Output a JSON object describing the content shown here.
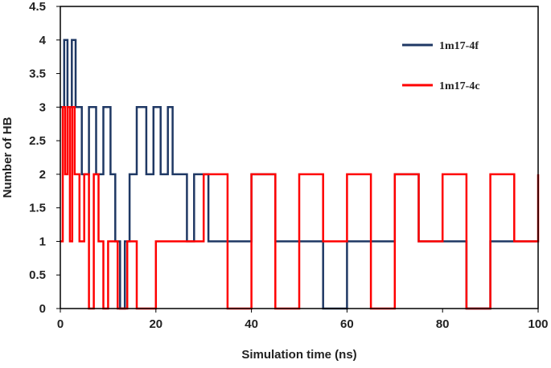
{
  "chart_data": {
    "type": "line",
    "title": "",
    "xlabel": "Simulation time (ns)",
    "ylabel": "Number of HB",
    "xlim": [
      0,
      100
    ],
    "ylim": [
      0,
      4.5
    ],
    "x_ticks": [
      0,
      20,
      40,
      60,
      80,
      100
    ],
    "y_ticks": [
      0,
      0.5,
      1,
      1.5,
      2,
      2.5,
      3,
      3.5,
      4,
      4.5
    ],
    "grid": false,
    "legend_position": "top-right",
    "series": [
      {
        "name": "1m17-4f",
        "color": "#1f3864",
        "x": [
          0,
          0.8,
          1.5,
          2.4,
          3.2,
          4.5,
          6,
          7.5,
          9,
          10.5,
          11.5,
          12.5,
          13.5,
          14.5,
          16,
          18,
          19.5,
          21,
          22.5,
          23.5,
          25,
          26.5,
          28,
          31,
          35,
          40,
          45,
          50,
          55,
          60,
          65,
          70,
          75,
          80,
          85,
          90,
          95,
          100
        ],
        "values": [
          3,
          4,
          3,
          4,
          3,
          2,
          3,
          2,
          3,
          2,
          1,
          0,
          1,
          2,
          3,
          2,
          3,
          2,
          3,
          2,
          2,
          1,
          2,
          1,
          1,
          2,
          1,
          1,
          0,
          1,
          1,
          2,
          1,
          1,
          0,
          1,
          1,
          1
        ]
      },
      {
        "name": "1m17-4c",
        "color": "#ff0000",
        "x": [
          0,
          0.5,
          1,
          1.5,
          2,
          2.5,
          3,
          4,
          5,
          6,
          7,
          8,
          9,
          10,
          12,
          14,
          16,
          20,
          25,
          30,
          35,
          40,
          45,
          50,
          55,
          60,
          65,
          70,
          75,
          80,
          85,
          90,
          95,
          100
        ],
        "values": [
          1,
          3,
          2,
          3,
          1,
          3,
          2,
          1,
          2,
          0,
          2,
          1,
          0,
          1,
          0,
          1,
          0,
          1,
          1,
          2,
          0,
          2,
          0,
          2,
          1,
          2,
          0,
          2,
          1,
          2,
          0,
          2,
          1,
          2
        ]
      }
    ]
  }
}
